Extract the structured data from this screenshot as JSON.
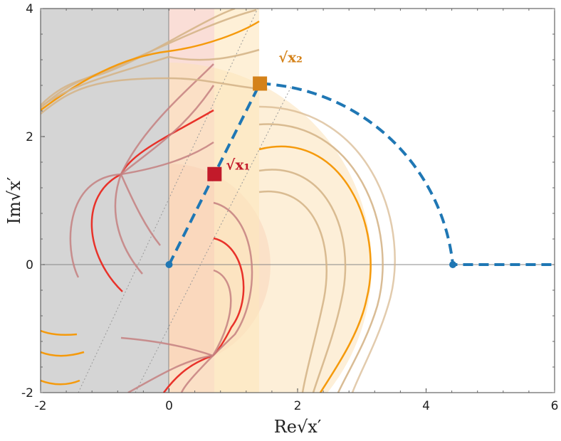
{
  "chart_data": {
    "type": "line",
    "xlabel": "Re√x′",
    "ylabel": "Im√x′",
    "xlim": [
      -2,
      6
    ],
    "ylim": [
      -2,
      4
    ],
    "x_ticks": [
      -2,
      0,
      2,
      4,
      6
    ],
    "y_ticks": [
      -2,
      0,
      2,
      4
    ],
    "grid": false,
    "colors": {
      "contour": "#1f77b4",
      "sqrt_x1": "#c21a2a",
      "sqrt_x2": "#d4821a",
      "red_curve": "#e8322a",
      "red_faint": "#c48080",
      "orange_curve": "#f59a0c",
      "orange_faint": "#d5b58a",
      "gray_region": "#d3d3d3",
      "red_region": "#f7c9c0",
      "orange_region": "#fdebc6"
    },
    "contour_path": {
      "points": [
        [
          0,
          0
        ],
        [
          0.707,
          1.414
        ],
        [
          1.414,
          2.828
        ],
        [
          4.416,
          0
        ],
        [
          6,
          0
        ]
      ],
      "arc_center": [
        0,
        0
      ],
      "arc_radius": 3.162
    },
    "annotations": [
      {
        "label": "√x₁",
        "x": 0.707,
        "y": 1.414,
        "color": "#c21a2a"
      },
      {
        "label": "√x₂",
        "x": 1.414,
        "y": 2.828,
        "color": "#d4821a"
      }
    ]
  }
}
